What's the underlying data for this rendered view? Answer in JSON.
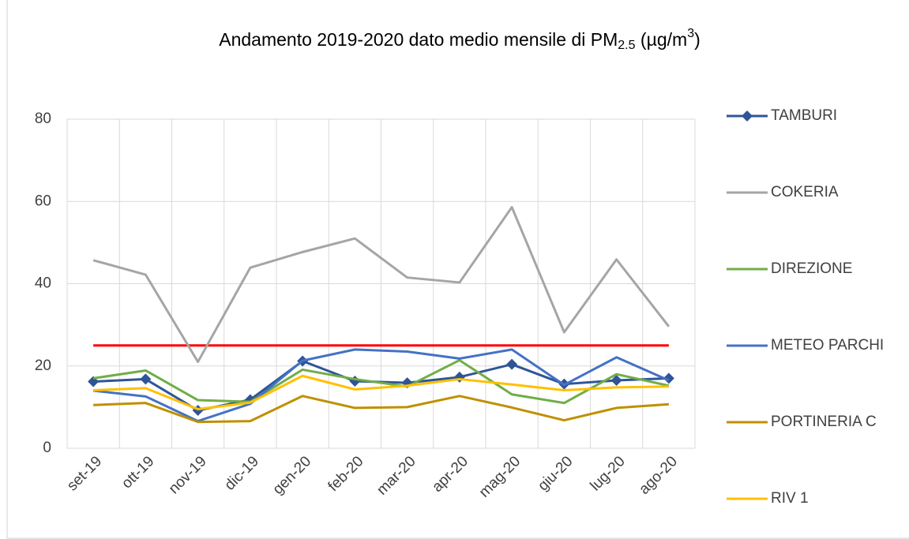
{
  "chart_data": {
    "type": "line",
    "title": {
      "text": "Andamento 2019-2020 dato medio mensile di PM",
      "sub": "2.5",
      "mid": " (µg/m",
      "sup": "3",
      "end": ")"
    },
    "categories": [
      "set-19",
      "ott-19",
      "nov-19",
      "dic-19",
      "gen-20",
      "feb-20",
      "mar-20",
      "apr-20",
      "mag-20",
      "giu-20",
      "lug-20",
      "ago-20"
    ],
    "series": [
      {
        "name": "TAMBURI",
        "color": "#2f5597",
        "marker": "diamond",
        "values": [
          16.2,
          16.8,
          9.2,
          11.8,
          21.2,
          16.3,
          15.9,
          17.3,
          20.4,
          15.6,
          16.5,
          17.0
        ]
      },
      {
        "name": "COKERIA",
        "color": "#a5a5a5",
        "values": [
          45.7,
          42.2,
          21.0,
          43.9,
          47.7,
          51.0,
          41.5,
          40.3,
          58.6,
          28.2,
          45.9,
          29.6
        ]
      },
      {
        "name": "DIREZIONE",
        "color": "#70ad47",
        "values": [
          17.0,
          18.9,
          11.7,
          11.3,
          19.1,
          16.8,
          15.0,
          21.4,
          13.1,
          11.0,
          18.0,
          15.2
        ]
      },
      {
        "name": "METEO PARCHI",
        "color": "#4472c4",
        "values": [
          14.0,
          12.6,
          6.6,
          10.8,
          21.3,
          24.0,
          23.5,
          21.8,
          24.0,
          15.4,
          22.1,
          16.5
        ]
      },
      {
        "name": "PORTINERIA C",
        "color": "#bf9000",
        "values": [
          10.5,
          11.0,
          6.4,
          6.6,
          12.7,
          9.8,
          10.0,
          12.7,
          9.9,
          6.8,
          9.8,
          10.7
        ]
      },
      {
        "name": "RIV 1",
        "color": "#ffc000",
        "values": [
          14.1,
          14.6,
          9.5,
          11.1,
          17.6,
          14.3,
          15.2,
          16.8,
          15.5,
          14.1,
          14.8,
          15.0
        ]
      }
    ],
    "reference_line": {
      "value": 25,
      "color": "#ff0000"
    },
    "ylim": [
      0,
      80
    ],
    "yticks": [
      0,
      20,
      40,
      60,
      80
    ],
    "grid": true,
    "legend": "right"
  }
}
